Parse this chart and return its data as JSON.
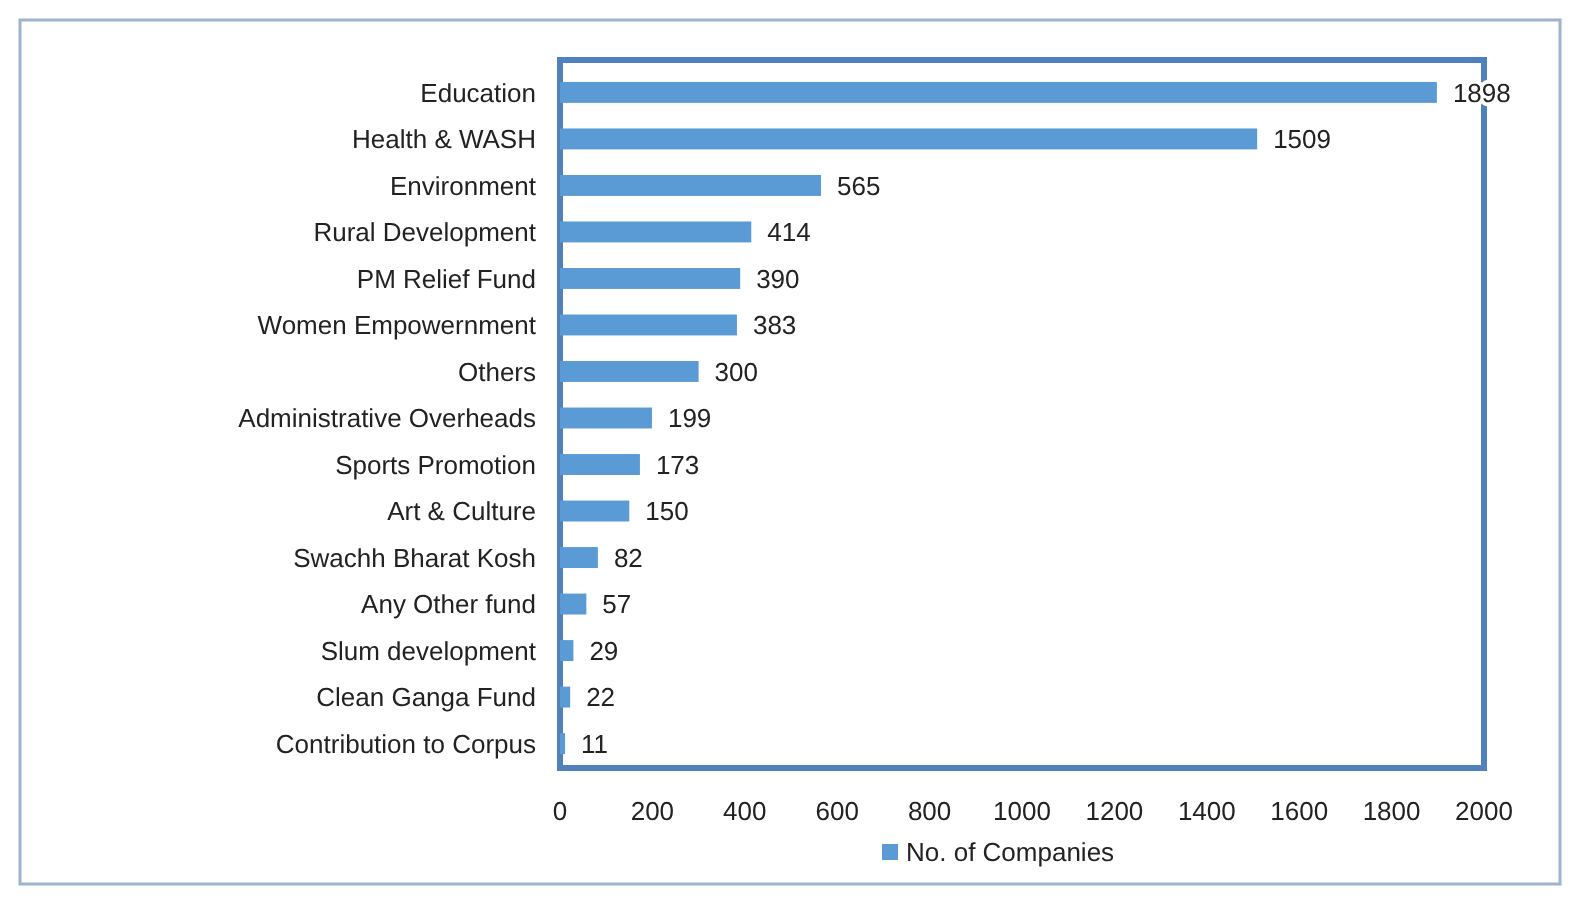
{
  "chart_data": {
    "type": "bar",
    "orientation": "horizontal",
    "categories": [
      "Education",
      "Health & WASH",
      "Environment",
      "Rural Development",
      "PM Relief Fund",
      "Women Empowernment",
      "Others",
      "Administrative Overheads",
      "Sports Promotion",
      "Art & Culture",
      "Swachh Bharat Kosh",
      "Any Other fund",
      "Slum development",
      "Clean Ganga Fund",
      "Contribution to Corpus"
    ],
    "series": [
      {
        "name": "No. of Companies",
        "color": "#5b9bd5",
        "values": [
          1898,
          1509,
          565,
          414,
          390,
          383,
          300,
          199,
          173,
          150,
          82,
          57,
          29,
          22,
          11
        ]
      }
    ],
    "xlim": [
      0,
      2000
    ],
    "xticks": [
      0,
      200,
      400,
      600,
      800,
      1000,
      1200,
      1400,
      1600,
      1800,
      2000
    ],
    "data_labels": true,
    "grid": false,
    "legend": "bottom"
  }
}
